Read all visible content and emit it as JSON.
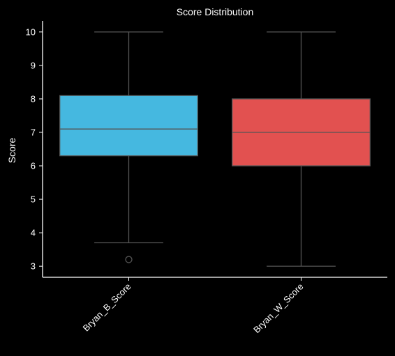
{
  "chart_data": {
    "type": "box",
    "title": "Score Distribution",
    "xlabel": "",
    "ylabel": "Score",
    "ylim": [
      2.67,
      10.33
    ],
    "y_ticks": [
      "3",
      "4",
      "5",
      "6",
      "7",
      "8",
      "9",
      "10"
    ],
    "grid": false,
    "categories": [
      "Bryan_B_Score",
      "Bryan_W_Score"
    ],
    "boxes": [
      {
        "category": "Bryan_B_Score",
        "whisker_low": 3.7,
        "q1": 6.3,
        "median": 7.1,
        "q3": 8.1,
        "whisker_high": 10.0,
        "outliers": [
          3.2
        ],
        "color": "#45b8e0"
      },
      {
        "category": "Bryan_W_Score",
        "whisker_low": 3.0,
        "q1": 6.0,
        "median": 7.0,
        "q3": 8.0,
        "whisker_high": 10.0,
        "outliers": [],
        "color": "#e25150"
      }
    ]
  }
}
